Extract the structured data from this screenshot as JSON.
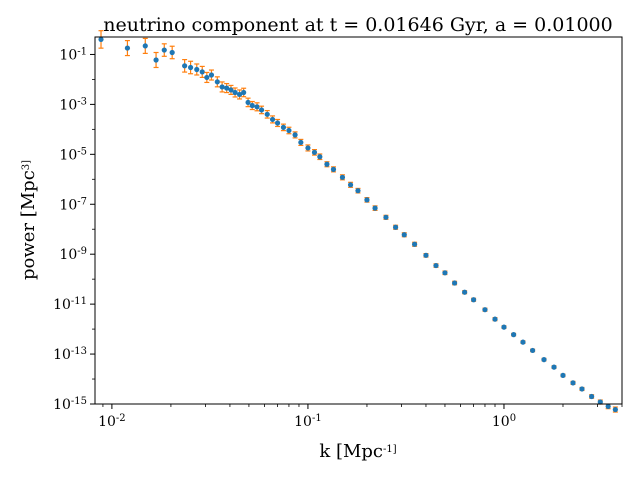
{
  "chart_data": {
    "type": "scatter",
    "title": "neutrino component at t = 0.01646 Gyr, a = 0.01000",
    "xlabel": "k [Mpc^-1]",
    "ylabel": "power [Mpc^3]",
    "xscale": "log",
    "yscale": "log",
    "xlim": [
      0.0082,
      4.0
    ],
    "ylim": [
      1e-15,
      0.5
    ],
    "grid": false,
    "x_ticks": [
      {
        "value": 0.01,
        "label": "10^-2"
      },
      {
        "value": 0.1,
        "label": "10^-1"
      },
      {
        "value": 1,
        "label": "10^0"
      }
    ],
    "y_ticks": [
      {
        "value": 0.1,
        "label": "10^-1"
      },
      {
        "value": 0.001,
        "label": "10^-3"
      },
      {
        "value": 1e-05,
        "label": "10^-5"
      },
      {
        "value": 1e-07,
        "label": "10^-7"
      },
      {
        "value": 1e-09,
        "label": "10^-9"
      },
      {
        "value": 1e-11,
        "label": "10^-11"
      },
      {
        "value": 1e-13,
        "label": "10^-13"
      },
      {
        "value": 1e-15,
        "label": "10^-15"
      }
    ],
    "colors": {
      "points": "#1f77b4",
      "errorbars": "#ff7f0e"
    },
    "series": [
      {
        "marker": "point with error bar",
        "x": [
          0.0088,
          0.012,
          0.0148,
          0.0168,
          0.0185,
          0.0203,
          0.0235,
          0.0252,
          0.0271,
          0.0289,
          0.0305,
          0.0322,
          0.0345,
          0.0365,
          0.0385,
          0.0405,
          0.0425,
          0.0448,
          0.047,
          0.0495,
          0.052,
          0.055,
          0.058,
          0.062,
          0.066,
          0.07,
          0.075,
          0.08,
          0.086,
          0.092,
          0.1,
          0.108,
          0.115,
          0.125,
          0.135,
          0.15,
          0.165,
          0.18,
          0.2,
          0.22,
          0.25,
          0.28,
          0.31,
          0.35,
          0.4,
          0.45,
          0.5,
          0.56,
          0.63,
          0.7,
          0.8,
          0.9,
          1.0,
          1.12,
          1.25,
          1.4,
          1.6,
          1.8,
          2.0,
          2.25,
          2.5,
          2.8,
          3.1,
          3.4,
          3.7
        ],
        "y": [
          0.4,
          0.18,
          0.22,
          0.06,
          0.15,
          0.12,
          0.035,
          0.03,
          0.025,
          0.02,
          0.012,
          0.015,
          0.008,
          0.005,
          0.0045,
          0.0038,
          0.003,
          0.0025,
          0.003,
          0.0012,
          0.0009,
          0.0008,
          0.0006,
          0.0004,
          0.00025,
          0.00018,
          0.00012,
          9e-05,
          6e-05,
          3e-05,
          1.8e-05,
          1.2e-05,
          8e-06,
          4e-06,
          2.5e-06,
          1.2e-06,
          6e-07,
          3.5e-07,
          1.5e-07,
          7e-08,
          3e-08,
          1.2e-08,
          6e-09,
          2.5e-09,
          9e-10,
          3.5e-10,
          1.8e-10,
          7e-11,
          3e-11,
          1.5e-11,
          6e-12,
          2.5e-12,
          1.2e-12,
          6e-13,
          3e-13,
          1.4e-13,
          6e-14,
          3e-14,
          1.4e-14,
          7e-15,
          4e-15,
          2e-15,
          1.2e-15,
          8e-16,
          6e-16
        ],
        "err": [
          0.35,
          0.3,
          0.3,
          0.3,
          0.25,
          0.25,
          0.25,
          0.25,
          0.22,
          0.22,
          0.2,
          0.2,
          0.2,
          0.2,
          0.18,
          0.18,
          0.18,
          0.18,
          0.17,
          0.17,
          0.16,
          0.16,
          0.15,
          0.15,
          0.14,
          0.14,
          0.13,
          0.13,
          0.12,
          0.12,
          0.12,
          0.11,
          0.11,
          0.1,
          0.1,
          0.1,
          0.1,
          0.09,
          0.09,
          0.09,
          0.08,
          0.08,
          0.08,
          0.08,
          0.07,
          0.07,
          0.07,
          0.07,
          0.06,
          0.06,
          0.06,
          0.06,
          0.05,
          0.05,
          0.05,
          0.05,
          0.05,
          0.05,
          0.05,
          0.06,
          0.06,
          0.07,
          0.08,
          0.09,
          0.1
        ]
      }
    ]
  }
}
